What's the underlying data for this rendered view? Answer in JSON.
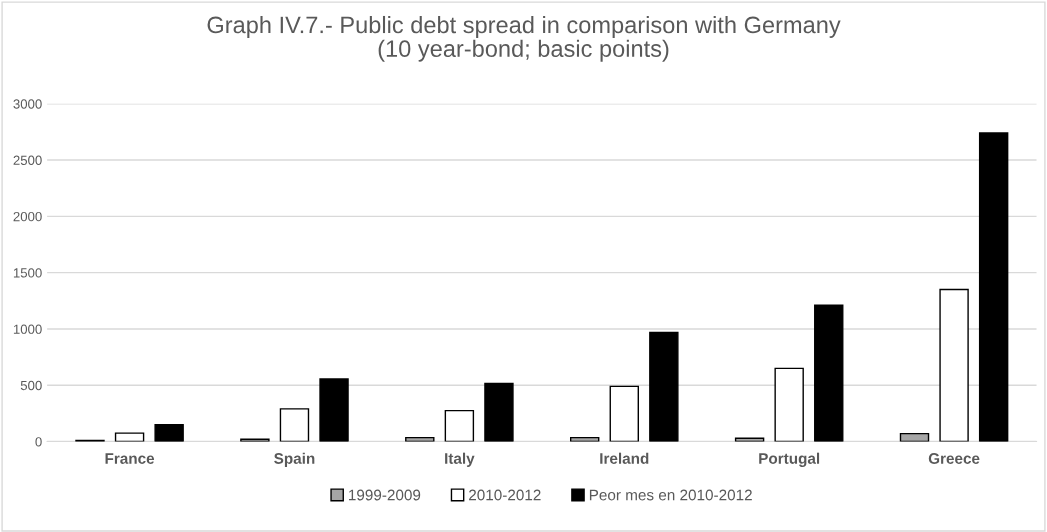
{
  "chart_data": {
    "type": "bar",
    "title": "Graph IV.7.- Public debt spread in comparison with Germany\n(10 year-bond; basic points)",
    "categories": [
      "France",
      "Spain",
      "Italy",
      "Ireland",
      "Portugal",
      "Greece"
    ],
    "series": [
      {
        "name": "1999-2009",
        "color": "#a6a6a6",
        "values": [
          10,
          20,
          35,
          35,
          30,
          70
        ]
      },
      {
        "name": "2010-2012",
        "color": "#ffffff",
        "values": [
          75,
          290,
          275,
          490,
          650,
          1350
        ]
      },
      {
        "name": "Peor mes en 2010-2012",
        "color": "#000000",
        "values": [
          150,
          555,
          515,
          970,
          1210,
          2740
        ]
      }
    ],
    "ylim": [
      0,
      3000
    ],
    "yticks": [
      0,
      500,
      1000,
      1500,
      2000,
      2500,
      3000
    ],
    "grid": "y",
    "legend": "bottom"
  }
}
